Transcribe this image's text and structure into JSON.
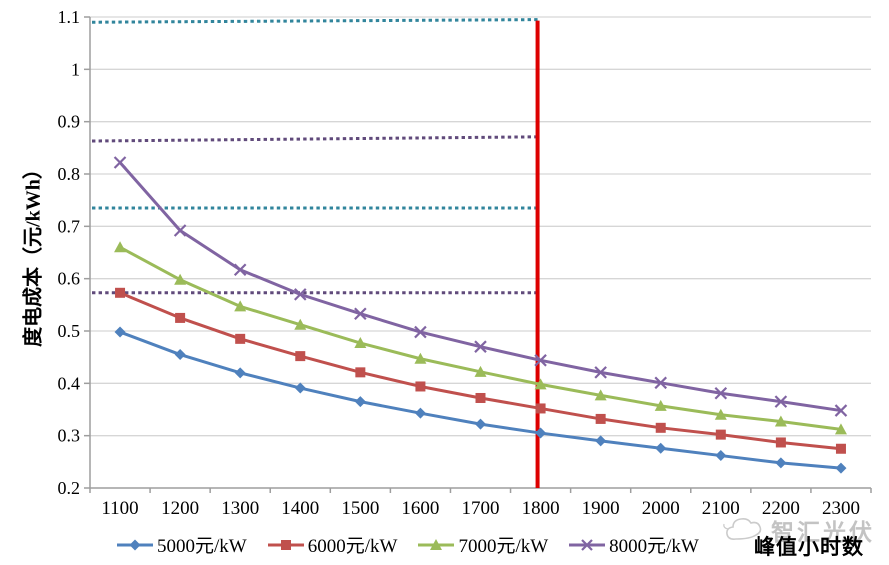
{
  "chart_data": {
    "type": "line",
    "title": "",
    "xlabel": "峰值小时数",
    "ylabel": "度电成本（元/kWh）",
    "x": [
      1100,
      1200,
      1300,
      1400,
      1500,
      1600,
      1700,
      1800,
      1900,
      2000,
      2100,
      2200,
      2300
    ],
    "x_tick_labels": [
      "1100",
      "1200",
      "1300",
      "1400",
      "1500",
      "1600",
      "1700",
      "1800",
      "1900",
      "2000",
      "2100",
      "2200",
      "2300"
    ],
    "y_tick_labels": [
      "0.2",
      "0.3",
      "0.4",
      "0.5",
      "0.6",
      "0.7",
      "0.8",
      "0.9",
      "1",
      "1.1"
    ],
    "y_ticks": [
      0.2,
      0.3,
      0.4,
      0.5,
      0.6,
      0.7,
      0.8,
      0.9,
      1.0,
      1.1
    ],
    "ylim": [
      0.2,
      1.1
    ],
    "grid": true,
    "legend_position": "bottom",
    "series": [
      {
        "name": "5000元/kW",
        "marker": "diamond",
        "color": "#4F81BD",
        "values": [
          0.498,
          0.455,
          0.42,
          0.391,
          0.365,
          0.343,
          0.322,
          0.305,
          0.29,
          0.276,
          0.262,
          0.248,
          0.238
        ]
      },
      {
        "name": "6000元/kW",
        "marker": "square",
        "color": "#C0504D",
        "values": [
          0.573,
          0.525,
          0.485,
          0.452,
          0.421,
          0.394,
          0.372,
          0.352,
          0.332,
          0.315,
          0.302,
          0.287,
          0.275
        ]
      },
      {
        "name": "7000元/kW",
        "marker": "triangle",
        "color": "#9BBB59",
        "values": [
          0.66,
          0.598,
          0.547,
          0.512,
          0.477,
          0.447,
          0.422,
          0.398,
          0.377,
          0.357,
          0.34,
          0.327,
          0.312
        ]
      },
      {
        "name": "8000元/kW",
        "marker": "x",
        "color": "#8064A2",
        "values": [
          0.822,
          0.692,
          0.617,
          0.57,
          0.533,
          0.498,
          0.47,
          0.444,
          0.421,
          0.401,
          0.381,
          0.365,
          0.348
        ]
      }
    ],
    "reference_lines": [
      {
        "style": "dotted",
        "color": "#31859C",
        "y_start": 1.09,
        "y_end": 1.095
      },
      {
        "style": "dotted",
        "color": "#604A7B",
        "y_start": 0.863,
        "y_end": 0.871
      },
      {
        "style": "dotted",
        "color": "#31859C",
        "y_start": 0.735,
        "y_end": 0.735
      },
      {
        "style": "dotted",
        "color": "#604A7B",
        "y_start": 0.573,
        "y_end": 0.573
      }
    ],
    "vertical_line": {
      "x": 1795,
      "color": "#DD0000",
      "y_from": 0.2,
      "y_to": 1.093
    }
  },
  "watermark": {
    "text": "智汇光伏"
  },
  "colors": {
    "background": "#FFFFFF",
    "gridline": "#D6D6D6",
    "axis": "#9E9E9E",
    "tick_text": "#000000"
  }
}
